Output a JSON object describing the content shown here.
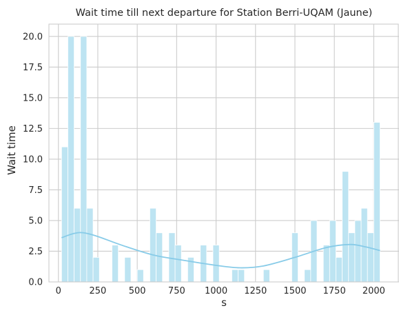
{
  "chart_data": {
    "type": "bar",
    "title": "Wait time till next departure for Station Berri-UQAM (Jaune)",
    "xlabel": "s",
    "ylabel": "Wait time",
    "xlim": [
      -60,
      2160
    ],
    "ylim": [
      0,
      21
    ],
    "xticks": [
      0,
      250,
      500,
      750,
      1000,
      1250,
      1500,
      1750,
      2000
    ],
    "yticks": [
      0.0,
      2.5,
      5.0,
      7.5,
      10.0,
      12.5,
      15.0,
      17.5,
      20.0
    ],
    "ytick_labels": [
      "0.0",
      "2.5",
      "5.0",
      "7.5",
      "10.0",
      "12.5",
      "15.0",
      "17.5",
      "20.0"
    ],
    "grid": true,
    "bin_width": 40,
    "bins": [
      {
        "start": 20,
        "count": 11
      },
      {
        "start": 60,
        "count": 20
      },
      {
        "start": 100,
        "count": 6
      },
      {
        "start": 140,
        "count": 20
      },
      {
        "start": 180,
        "count": 6
      },
      {
        "start": 220,
        "count": 2
      },
      {
        "start": 340,
        "count": 3
      },
      {
        "start": 420,
        "count": 2
      },
      {
        "start": 500,
        "count": 1
      },
      {
        "start": 580,
        "count": 6
      },
      {
        "start": 620,
        "count": 4
      },
      {
        "start": 700,
        "count": 4
      },
      {
        "start": 740,
        "count": 3
      },
      {
        "start": 820,
        "count": 2
      },
      {
        "start": 900,
        "count": 3
      },
      {
        "start": 980,
        "count": 3
      },
      {
        "start": 1100,
        "count": 1
      },
      {
        "start": 1140,
        "count": 1
      },
      {
        "start": 1300,
        "count": 1
      },
      {
        "start": 1480,
        "count": 4
      },
      {
        "start": 1560,
        "count": 1
      },
      {
        "start": 1600,
        "count": 5
      },
      {
        "start": 1680,
        "count": 3
      },
      {
        "start": 1720,
        "count": 5
      },
      {
        "start": 1760,
        "count": 2
      },
      {
        "start": 1800,
        "count": 9
      },
      {
        "start": 1840,
        "count": 4
      },
      {
        "start": 1880,
        "count": 5
      },
      {
        "start": 1920,
        "count": 6
      },
      {
        "start": 1960,
        "count": 4
      },
      {
        "start": 2000,
        "count": 13
      }
    ],
    "kde": {
      "x": [
        20,
        100,
        160,
        250,
        400,
        600,
        800,
        1000,
        1150,
        1300,
        1500,
        1700,
        1850,
        1950,
        2040
      ],
      "y": [
        3.6,
        3.95,
        4.0,
        3.7,
        3.0,
        2.2,
        1.75,
        1.35,
        1.15,
        1.3,
        2.0,
        2.8,
        3.05,
        2.85,
        2.55
      ]
    },
    "bar_color": "#bde4f2",
    "bar_edge_color": "#ffffff",
    "kde_color": "#87cbe8",
    "grid_color": "#cccccc",
    "spine_color": "#cccccc"
  }
}
